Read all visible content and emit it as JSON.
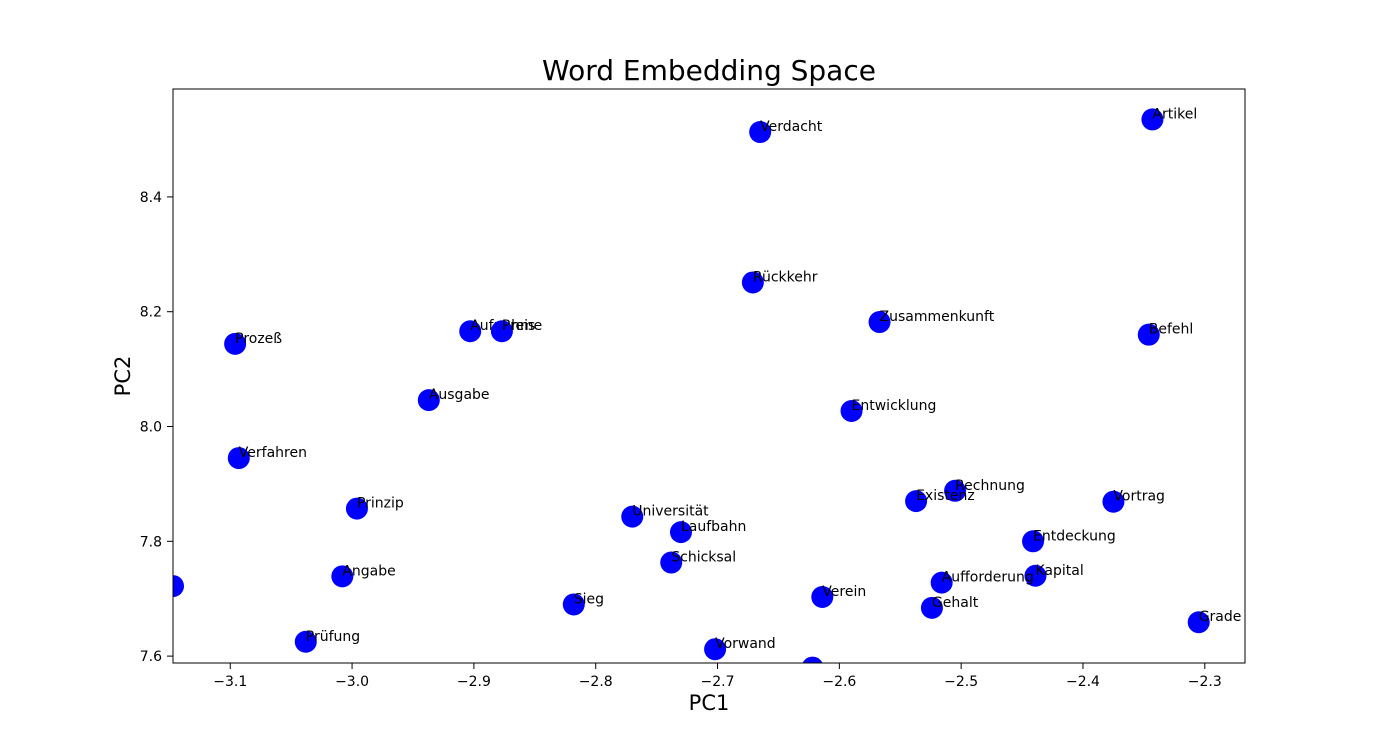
{
  "chart_data": {
    "type": "scatter",
    "title": "Word Embedding Space",
    "xlabel": "PC1",
    "ylabel": "PC2",
    "xlim": [
      -3.147,
      -2.267
    ],
    "ylim": [
      7.588,
      8.588
    ],
    "xticks": [
      -3.1,
      -3.0,
      -2.9,
      -2.8,
      -2.7,
      -2.6,
      -2.5,
      -2.4,
      -2.3
    ],
    "xtick_labels": [
      "−3.1",
      "−3.0",
      "−2.9",
      "−2.8",
      "−2.7",
      "−2.6",
      "−2.5",
      "−2.4",
      "−2.3"
    ],
    "yticks": [
      7.6,
      7.8,
      8.0,
      8.2,
      8.4
    ],
    "ytick_labels": [
      "7.6",
      "7.8",
      "8.0",
      "8.2",
      "8.4"
    ],
    "grid": false,
    "color": "#0000ff",
    "points": [
      {
        "label": "Verdacht",
        "x": -2.665,
        "y": 8.513
      },
      {
        "label": "Artikel",
        "x": -2.343,
        "y": 8.535
      },
      {
        "label": "Rückkehr",
        "x": -2.671,
        "y": 8.251
      },
      {
        "label": "Aufnahme",
        "x": -2.903,
        "y": 8.166
      },
      {
        "label": "Preis",
        "x": -2.877,
        "y": 8.166
      },
      {
        "label": "Zusammenkunft",
        "x": -2.567,
        "y": 8.182
      },
      {
        "label": "Befehl",
        "x": -2.346,
        "y": 8.16
      },
      {
        "label": "Prozeß",
        "x": -3.096,
        "y": 8.144
      },
      {
        "label": "Ausgabe",
        "x": -2.937,
        "y": 8.046
      },
      {
        "label": "Entwicklung",
        "x": -2.59,
        "y": 8.027
      },
      {
        "label": "Verfahren",
        "x": -3.093,
        "y": 7.945
      },
      {
        "label": "Rechnung",
        "x": -2.505,
        "y": 7.888
      },
      {
        "label": "Existenz",
        "x": -2.537,
        "y": 7.87
      },
      {
        "label": "Vortrag",
        "x": -2.375,
        "y": 7.869
      },
      {
        "label": "Prinzip",
        "x": -2.996,
        "y": 7.857
      },
      {
        "label": "Universität",
        "x": -2.77,
        "y": 7.843
      },
      {
        "label": "Laufbahn",
        "x": -2.73,
        "y": 7.816
      },
      {
        "label": "Entdeckung",
        "x": -2.441,
        "y": 7.8
      },
      {
        "label": "Schicksal",
        "x": -2.738,
        "y": 7.763
      },
      {
        "label": "Angabe",
        "x": -3.008,
        "y": 7.739
      },
      {
        "label": "Kapital",
        "x": -2.439,
        "y": 7.74
      },
      {
        "label": "Aufforderung",
        "x": -2.516,
        "y": 7.728
      },
      {
        "label": "",
        "x": -3.147,
        "y": 7.722
      },
      {
        "label": "Verein",
        "x": -2.614,
        "y": 7.703
      },
      {
        "label": "Sieg",
        "x": -2.818,
        "y": 7.69
      },
      {
        "label": "Gehalt",
        "x": -2.524,
        "y": 7.684
      },
      {
        "label": "Grade",
        "x": -2.305,
        "y": 7.659
      },
      {
        "label": "Prüfung",
        "x": -3.038,
        "y": 7.625
      },
      {
        "label": "Vorwand",
        "x": -2.702,
        "y": 7.612
      },
      {
        "label": "",
        "x": -2.622,
        "y": 7.58
      }
    ]
  }
}
